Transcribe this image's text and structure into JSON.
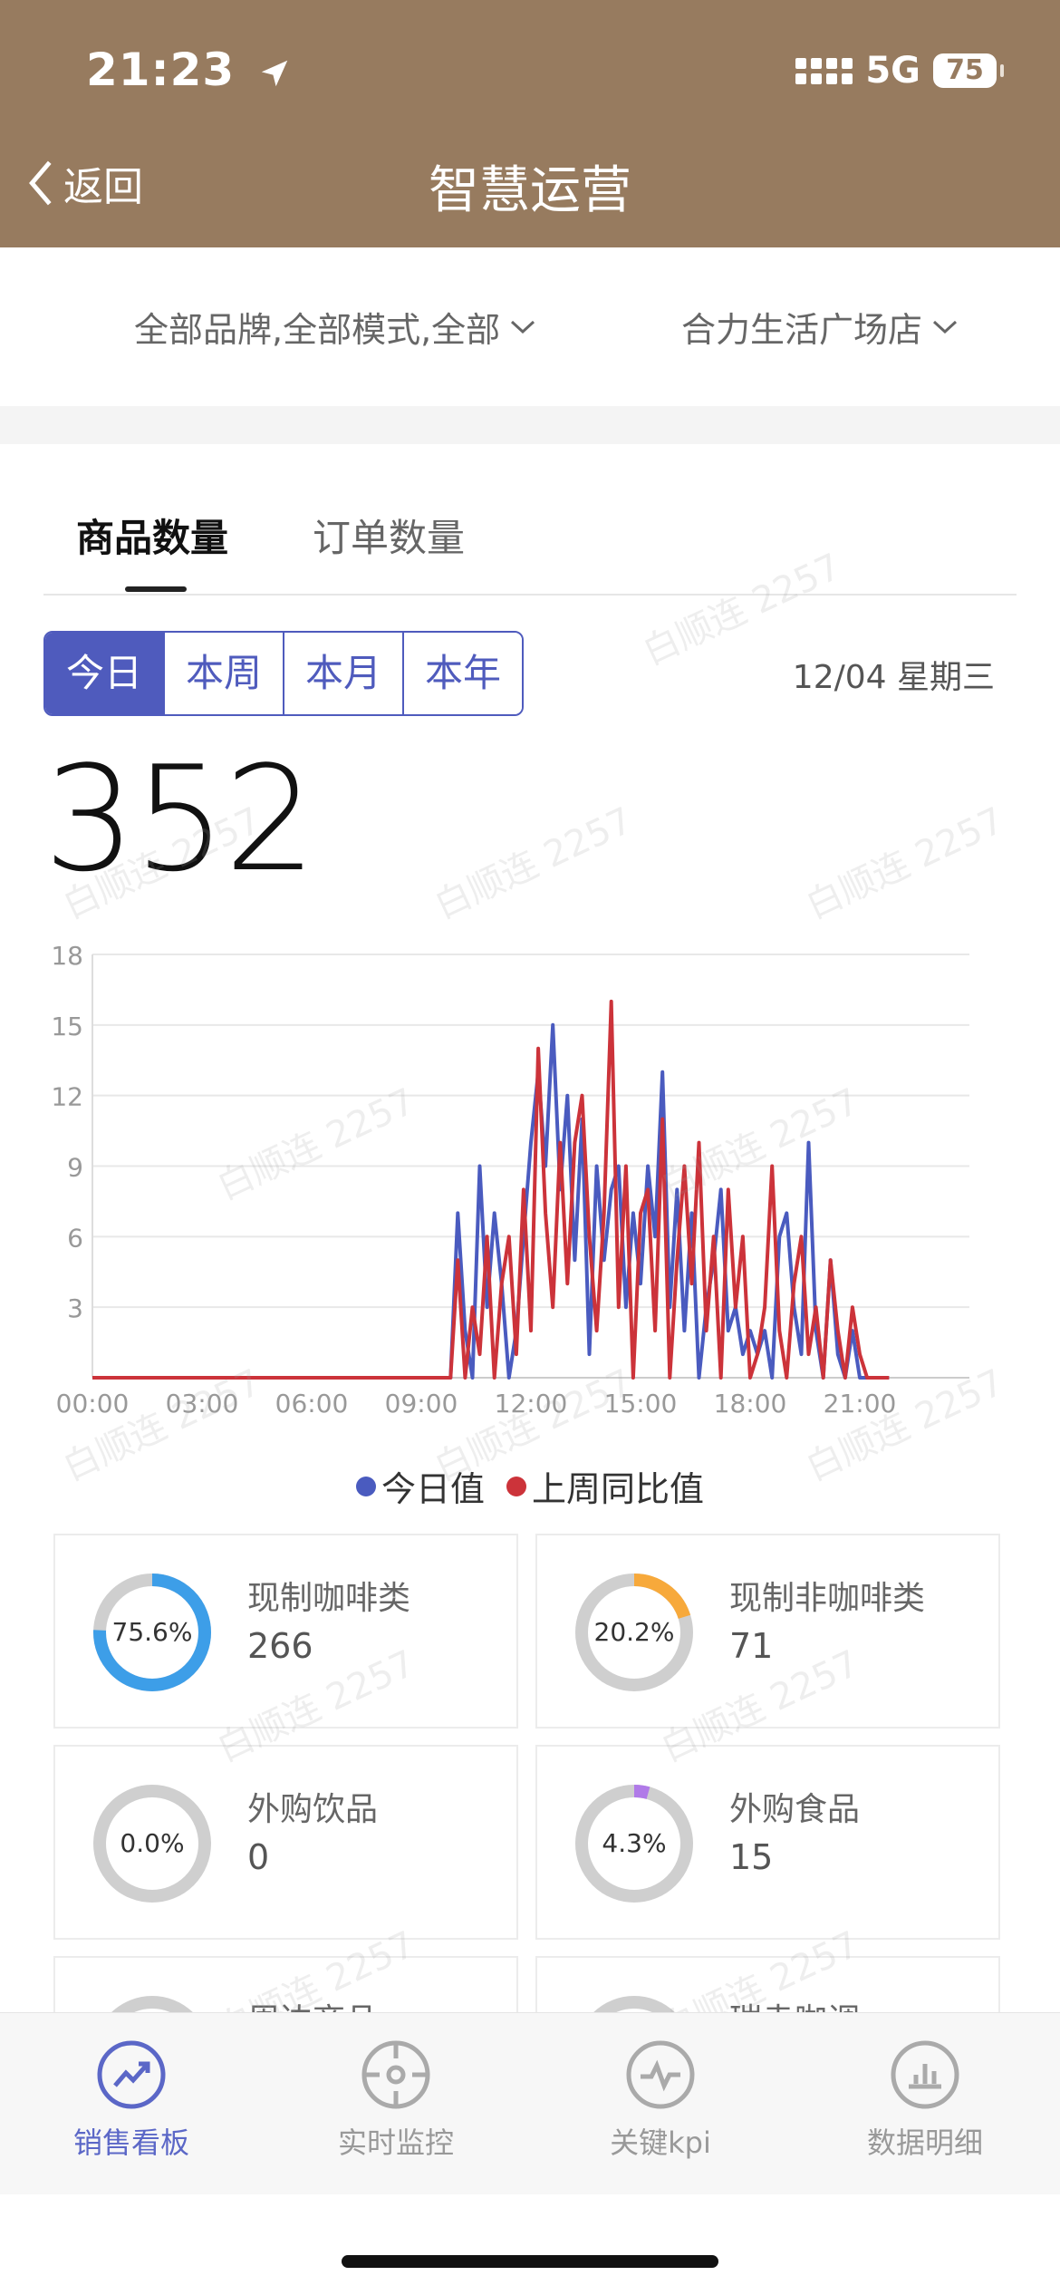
{
  "status_bar": {
    "time": "21:23",
    "network": "5G",
    "battery": "75"
  },
  "nav": {
    "back_label": "返回",
    "title": "智慧运营"
  },
  "filters": {
    "brand_mode": "全部品牌,全部模式,全部",
    "store": "合力生活广场店"
  },
  "tabs": [
    {
      "label": "商品数量",
      "active": true
    },
    {
      "label": "订单数量",
      "active": false
    }
  ],
  "periods": [
    {
      "label": "今日",
      "active": true
    },
    {
      "label": "本周",
      "active": false
    },
    {
      "label": "本月",
      "active": false
    },
    {
      "label": "本年",
      "active": false
    }
  ],
  "date_label": "12/04 星期三",
  "total": "352",
  "chart_data": {
    "type": "line",
    "xlim": [
      0,
      24
    ],
    "ylim": [
      0,
      18
    ],
    "y_ticks": [
      "3",
      "6",
      "9",
      "12",
      "15",
      "18"
    ],
    "x_ticks": [
      "00:00",
      "03:00",
      "06:00",
      "09:00",
      "12:00",
      "15:00",
      "18:00",
      "21:00"
    ],
    "grid": true,
    "legend_position": "bottom",
    "series": [
      {
        "name": "今日值",
        "color": "#4a5bbf",
        "x": [
          0,
          9.8,
          10,
          10.2,
          10.4,
          10.6,
          10.8,
          11,
          11.2,
          11.4,
          11.6,
          11.8,
          12,
          12.2,
          12.4,
          12.6,
          12.8,
          13,
          13.2,
          13.4,
          13.6,
          13.8,
          14,
          14.2,
          14.4,
          14.6,
          14.8,
          15,
          15.2,
          15.4,
          15.6,
          15.8,
          16,
          16.2,
          16.4,
          16.6,
          16.8,
          17,
          17.2,
          17.4,
          17.6,
          17.8,
          18,
          18.2,
          18.4,
          18.6,
          18.8,
          19,
          19.2,
          19.4,
          19.6,
          19.8,
          20,
          20.2,
          20.4,
          20.6,
          20.8,
          21,
          21.2,
          21.4,
          21.6,
          21.8
        ],
        "y": [
          0,
          0,
          7,
          2,
          0,
          9,
          3,
          7,
          4,
          0,
          2,
          6,
          10,
          13,
          9,
          15,
          8,
          12,
          5,
          11,
          1,
          9,
          5,
          8,
          9,
          3,
          7,
          4,
          9,
          6,
          13,
          3,
          8,
          2,
          7,
          0,
          3,
          5,
          8,
          2,
          3,
          1,
          2,
          1,
          2,
          0,
          6,
          7,
          3,
          1,
          10,
          2,
          0,
          5,
          1,
          0,
          2,
          0,
          0,
          0,
          0,
          0
        ]
      },
      {
        "name": "上周同比值",
        "color": "#cc333a",
        "x": [
          0,
          9.8,
          10,
          10.2,
          10.4,
          10.6,
          10.8,
          11,
          11.2,
          11.4,
          11.6,
          11.8,
          12,
          12.2,
          12.4,
          12.6,
          12.8,
          13,
          13.2,
          13.4,
          13.6,
          13.8,
          14,
          14.2,
          14.4,
          14.6,
          14.8,
          15,
          15.2,
          15.4,
          15.6,
          15.8,
          16,
          16.2,
          16.4,
          16.6,
          16.8,
          17,
          17.2,
          17.4,
          17.6,
          17.8,
          18,
          18.2,
          18.4,
          18.6,
          18.8,
          19,
          19.2,
          19.4,
          19.6,
          19.8,
          20,
          20.2,
          20.4,
          20.6,
          20.8,
          21,
          21.2,
          21.4,
          21.6,
          21.8
        ],
        "y": [
          0,
          0,
          5,
          0,
          3,
          1,
          6,
          0,
          4,
          6,
          1,
          8,
          2,
          14,
          7,
          3,
          10,
          4,
          10,
          12,
          6,
          2,
          7,
          16,
          3,
          9,
          0,
          7,
          8,
          2,
          11,
          0,
          5,
          9,
          4,
          10,
          2,
          6,
          0,
          8,
          3,
          6,
          0,
          1,
          3,
          9,
          2,
          0,
          4,
          6,
          1,
          3,
          0,
          5,
          2,
          0,
          3,
          1,
          0,
          0,
          0,
          0
        ]
      }
    ]
  },
  "categories": [
    {
      "name": "现制咖啡类",
      "value": "266",
      "percent": "75.6%",
      "fraction": 0.756,
      "color": "#3d9ee8"
    },
    {
      "name": "现制非咖啡类",
      "value": "71",
      "percent": "20.2%",
      "fraction": 0.202,
      "color": "#f7a93b"
    },
    {
      "name": "外购饮品",
      "value": "0",
      "percent": "0.0%",
      "fraction": 0.0,
      "color": "#3d9ee8"
    },
    {
      "name": "外购食品",
      "value": "15",
      "percent": "4.3%",
      "fraction": 0.043,
      "color": "#b07ae8"
    },
    {
      "name": "周边商品",
      "value": "",
      "percent": "",
      "fraction": 0,
      "color": "#cccccc"
    },
    {
      "name": "瑞幸咖调",
      "value": "",
      "percent": "",
      "fraction": 0,
      "color": "#cccccc"
    }
  ],
  "watermark_text": "白顺连 2257",
  "bottom_tabs": [
    {
      "label": "销售看板",
      "icon": "trend-chart-icon",
      "active": true
    },
    {
      "label": "实时监控",
      "icon": "target-icon",
      "active": false
    },
    {
      "label": "关键kpi",
      "icon": "pulse-icon",
      "active": false
    },
    {
      "label": "数据明细",
      "icon": "bar-chart-icon",
      "active": false
    }
  ]
}
